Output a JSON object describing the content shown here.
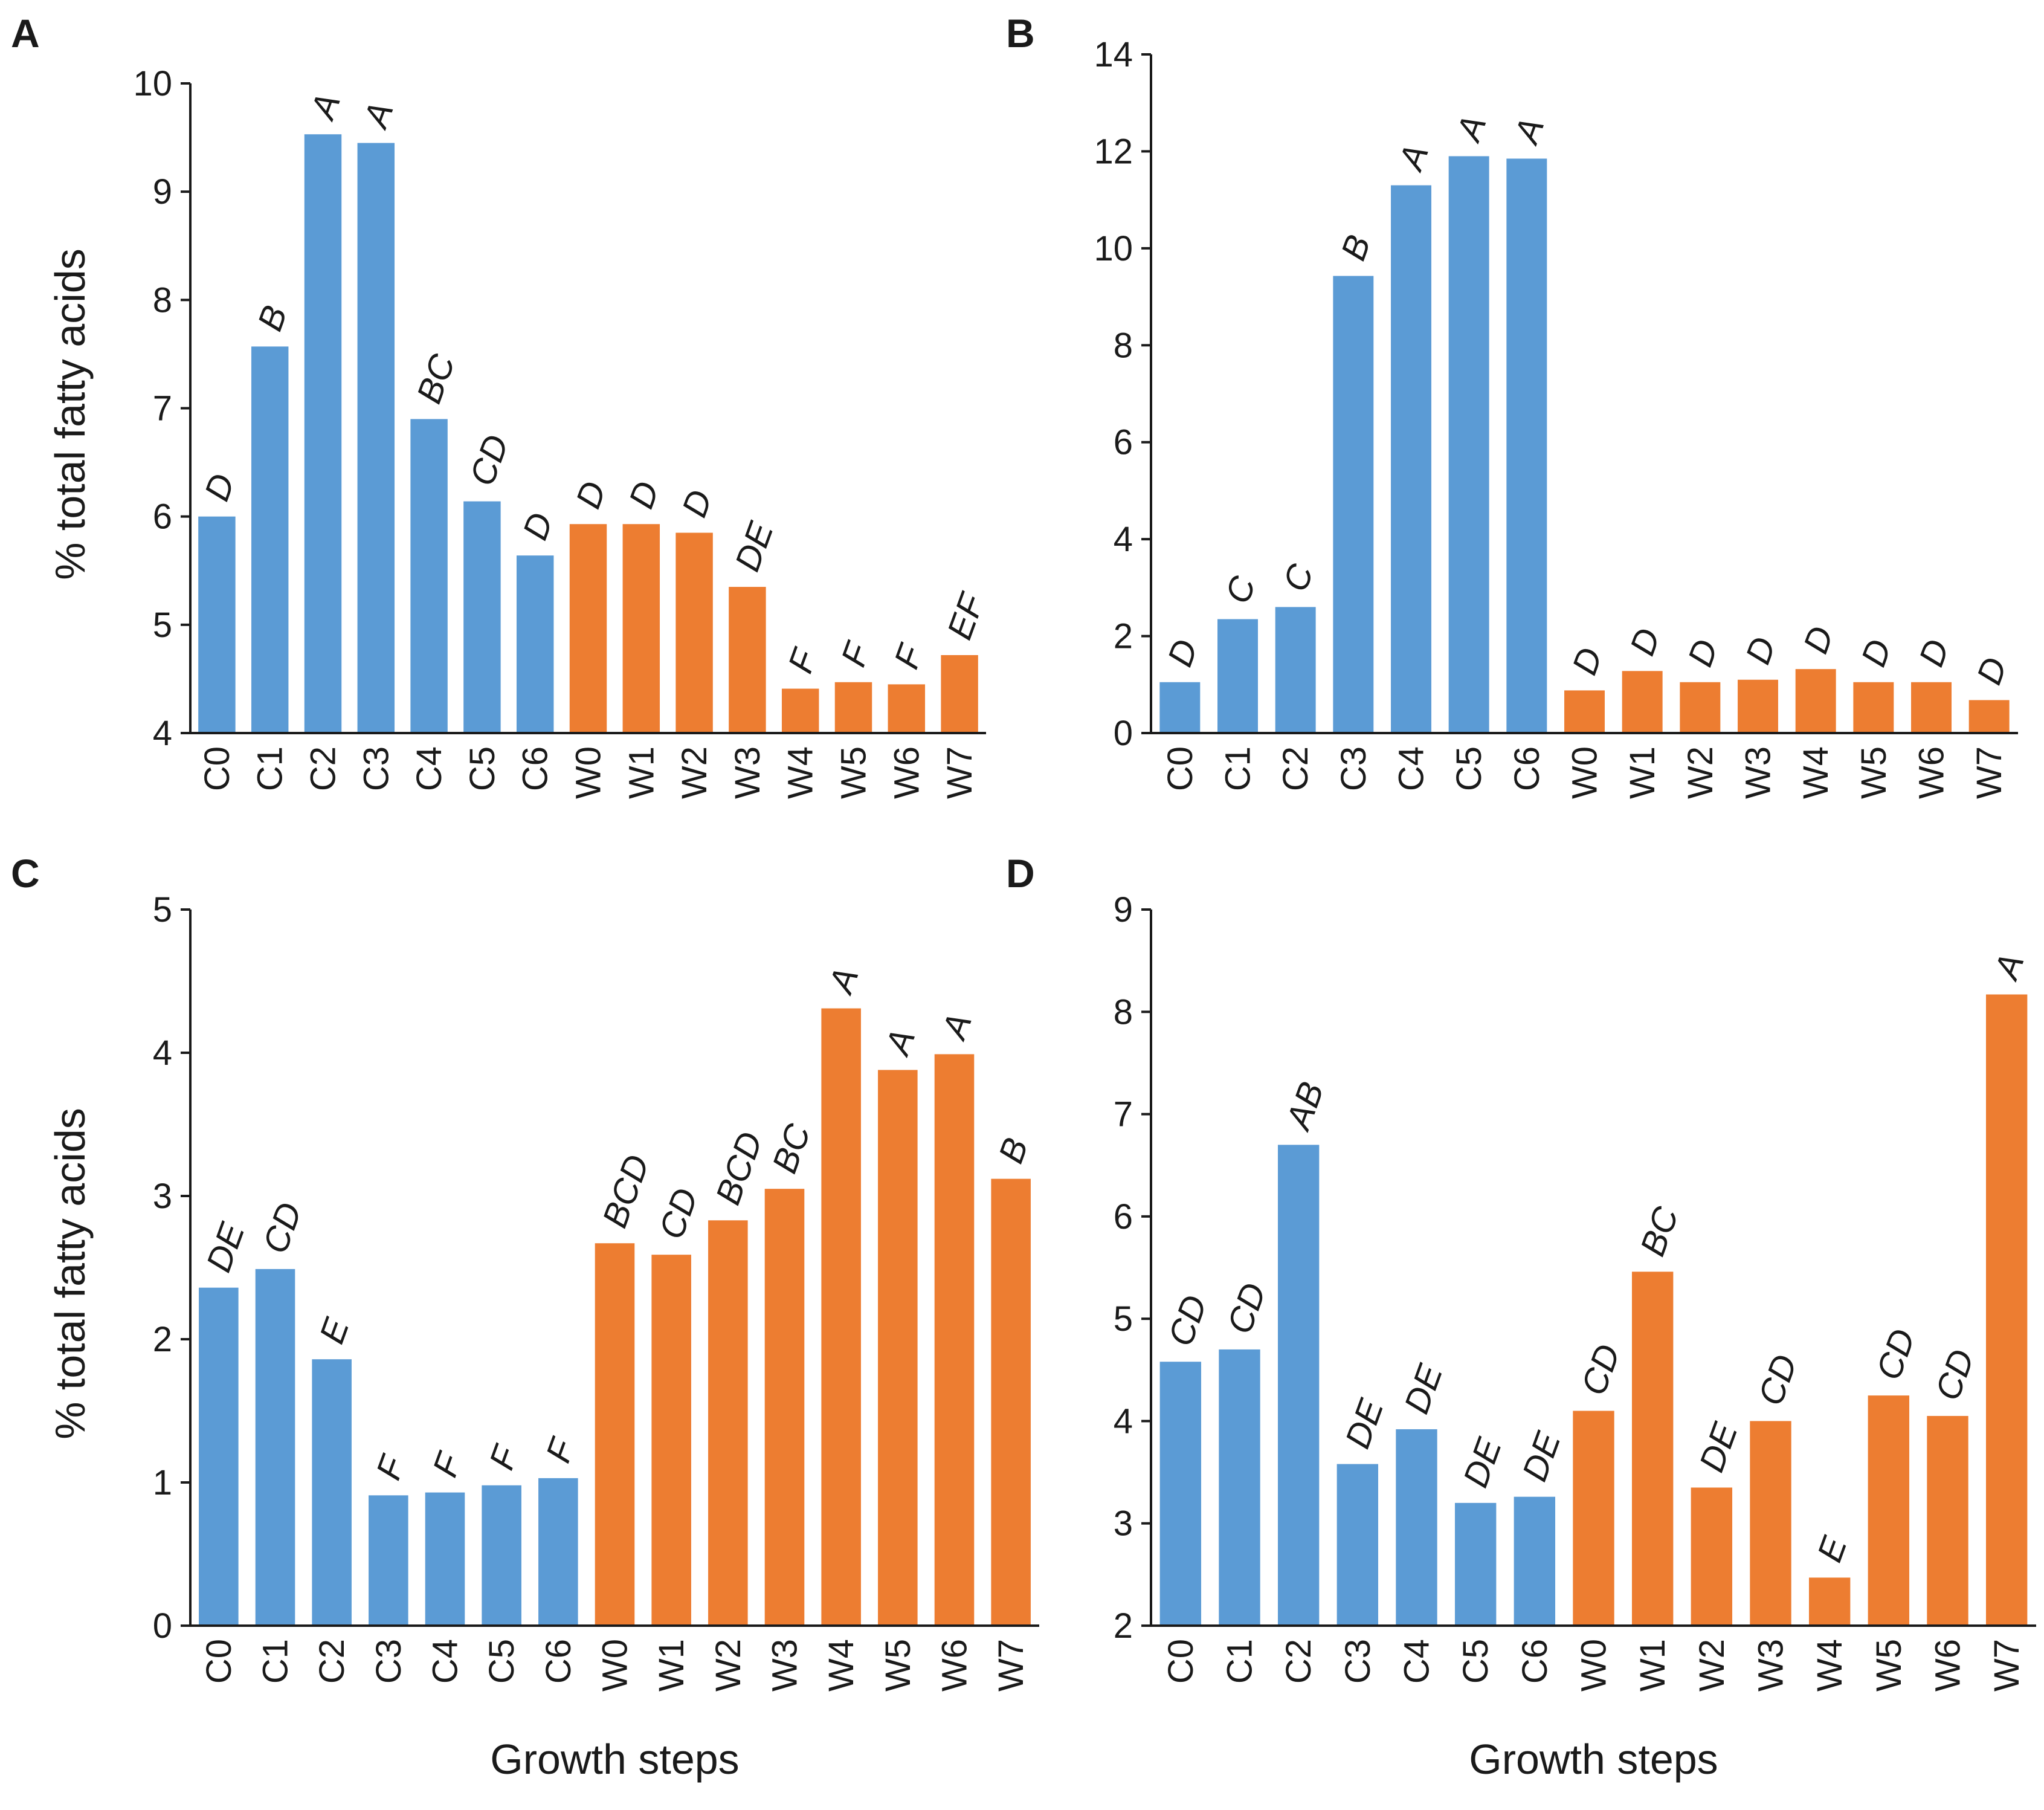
{
  "colors": {
    "cold": "#5b9bd5",
    "warm": "#ed7d31",
    "axis": "#1a1a1a"
  },
  "chart_data": [
    {
      "panel": "A",
      "type": "bar",
      "categories": [
        "C0",
        "C1",
        "C2",
        "C3",
        "C4",
        "C5",
        "C6",
        "W0",
        "W1",
        "W2",
        "W3",
        "W4",
        "W5",
        "W6",
        "W7"
      ],
      "values": [
        6.0,
        7.57,
        9.53,
        9.45,
        6.9,
        6.14,
        5.64,
        5.93,
        5.93,
        5.85,
        5.35,
        4.41,
        4.47,
        4.45,
        4.72
      ],
      "letters": [
        "D",
        "B",
        "A",
        "A",
        "BC",
        "CD",
        "D",
        "D",
        "D",
        "D",
        "DE",
        "F",
        "F",
        "F",
        "EF"
      ],
      "ylim": [
        4,
        10
      ],
      "yticks": [
        4,
        5,
        6,
        7,
        8,
        9,
        10
      ],
      "ylabel": "% total fatty acids",
      "xlabel": ""
    },
    {
      "panel": "B",
      "type": "bar",
      "categories": [
        "C0",
        "C1",
        "C2",
        "C3",
        "C4",
        "C5",
        "C6",
        "W0",
        "W1",
        "W2",
        "W3",
        "W4",
        "W5",
        "W6",
        "W7"
      ],
      "values": [
        1.05,
        2.35,
        2.6,
        9.43,
        11.3,
        11.9,
        11.85,
        0.88,
        1.28,
        1.05,
        1.1,
        1.32,
        1.05,
        1.05,
        0.68
      ],
      "letters": [
        "D",
        "C",
        "C",
        "B",
        "A",
        "A",
        "A",
        "D",
        "D",
        "D",
        "D",
        "D",
        "D",
        "D",
        "D"
      ],
      "ylim": [
        0,
        14
      ],
      "yticks": [
        0,
        2,
        4,
        6,
        8,
        10,
        12,
        14
      ],
      "ylabel": "",
      "xlabel": ""
    },
    {
      "panel": "C",
      "type": "bar",
      "categories": [
        "C0",
        "C1",
        "C2",
        "C3",
        "C4",
        "C5",
        "C6",
        "W0",
        "W1",
        "W2",
        "W3",
        "W4",
        "W5",
        "W6",
        "W7"
      ],
      "values": [
        2.36,
        2.49,
        1.86,
        0.91,
        0.93,
        0.98,
        1.03,
        2.67,
        2.59,
        2.83,
        3.05,
        4.31,
        3.88,
        3.99,
        3.12
      ],
      "letters": [
        "DE",
        "CD",
        "E",
        "F",
        "F",
        "F",
        "F",
        "BCD",
        "CD",
        "BCD",
        "BC",
        "A",
        "A",
        "A",
        "B"
      ],
      "ylim": [
        0,
        5
      ],
      "yticks": [
        0,
        1,
        2,
        3,
        4,
        5
      ],
      "ylabel": "% total fatty acids",
      "xlabel": "Growth steps"
    },
    {
      "panel": "D",
      "type": "bar",
      "categories": [
        "C0",
        "C1",
        "C2",
        "C3",
        "C4",
        "C5",
        "C6",
        "W0",
        "W1",
        "W2",
        "W3",
        "W4",
        "W5",
        "W6",
        "W7"
      ],
      "values": [
        4.58,
        4.7,
        6.7,
        3.58,
        3.92,
        3.2,
        3.26,
        4.1,
        5.46,
        3.35,
        4.0,
        2.47,
        4.25,
        4.05,
        8.17
      ],
      "letters": [
        "CD",
        "CD",
        "AB",
        "DE",
        "DE",
        "DE",
        "DE",
        "CD",
        "BC",
        "DE",
        "CD",
        "E",
        "CD",
        "CD",
        "A"
      ],
      "ylim": [
        2,
        9
      ],
      "yticks": [
        2,
        3,
        4,
        5,
        6,
        7,
        8,
        9
      ],
      "ylabel": "",
      "xlabel": "Growth steps"
    }
  ]
}
